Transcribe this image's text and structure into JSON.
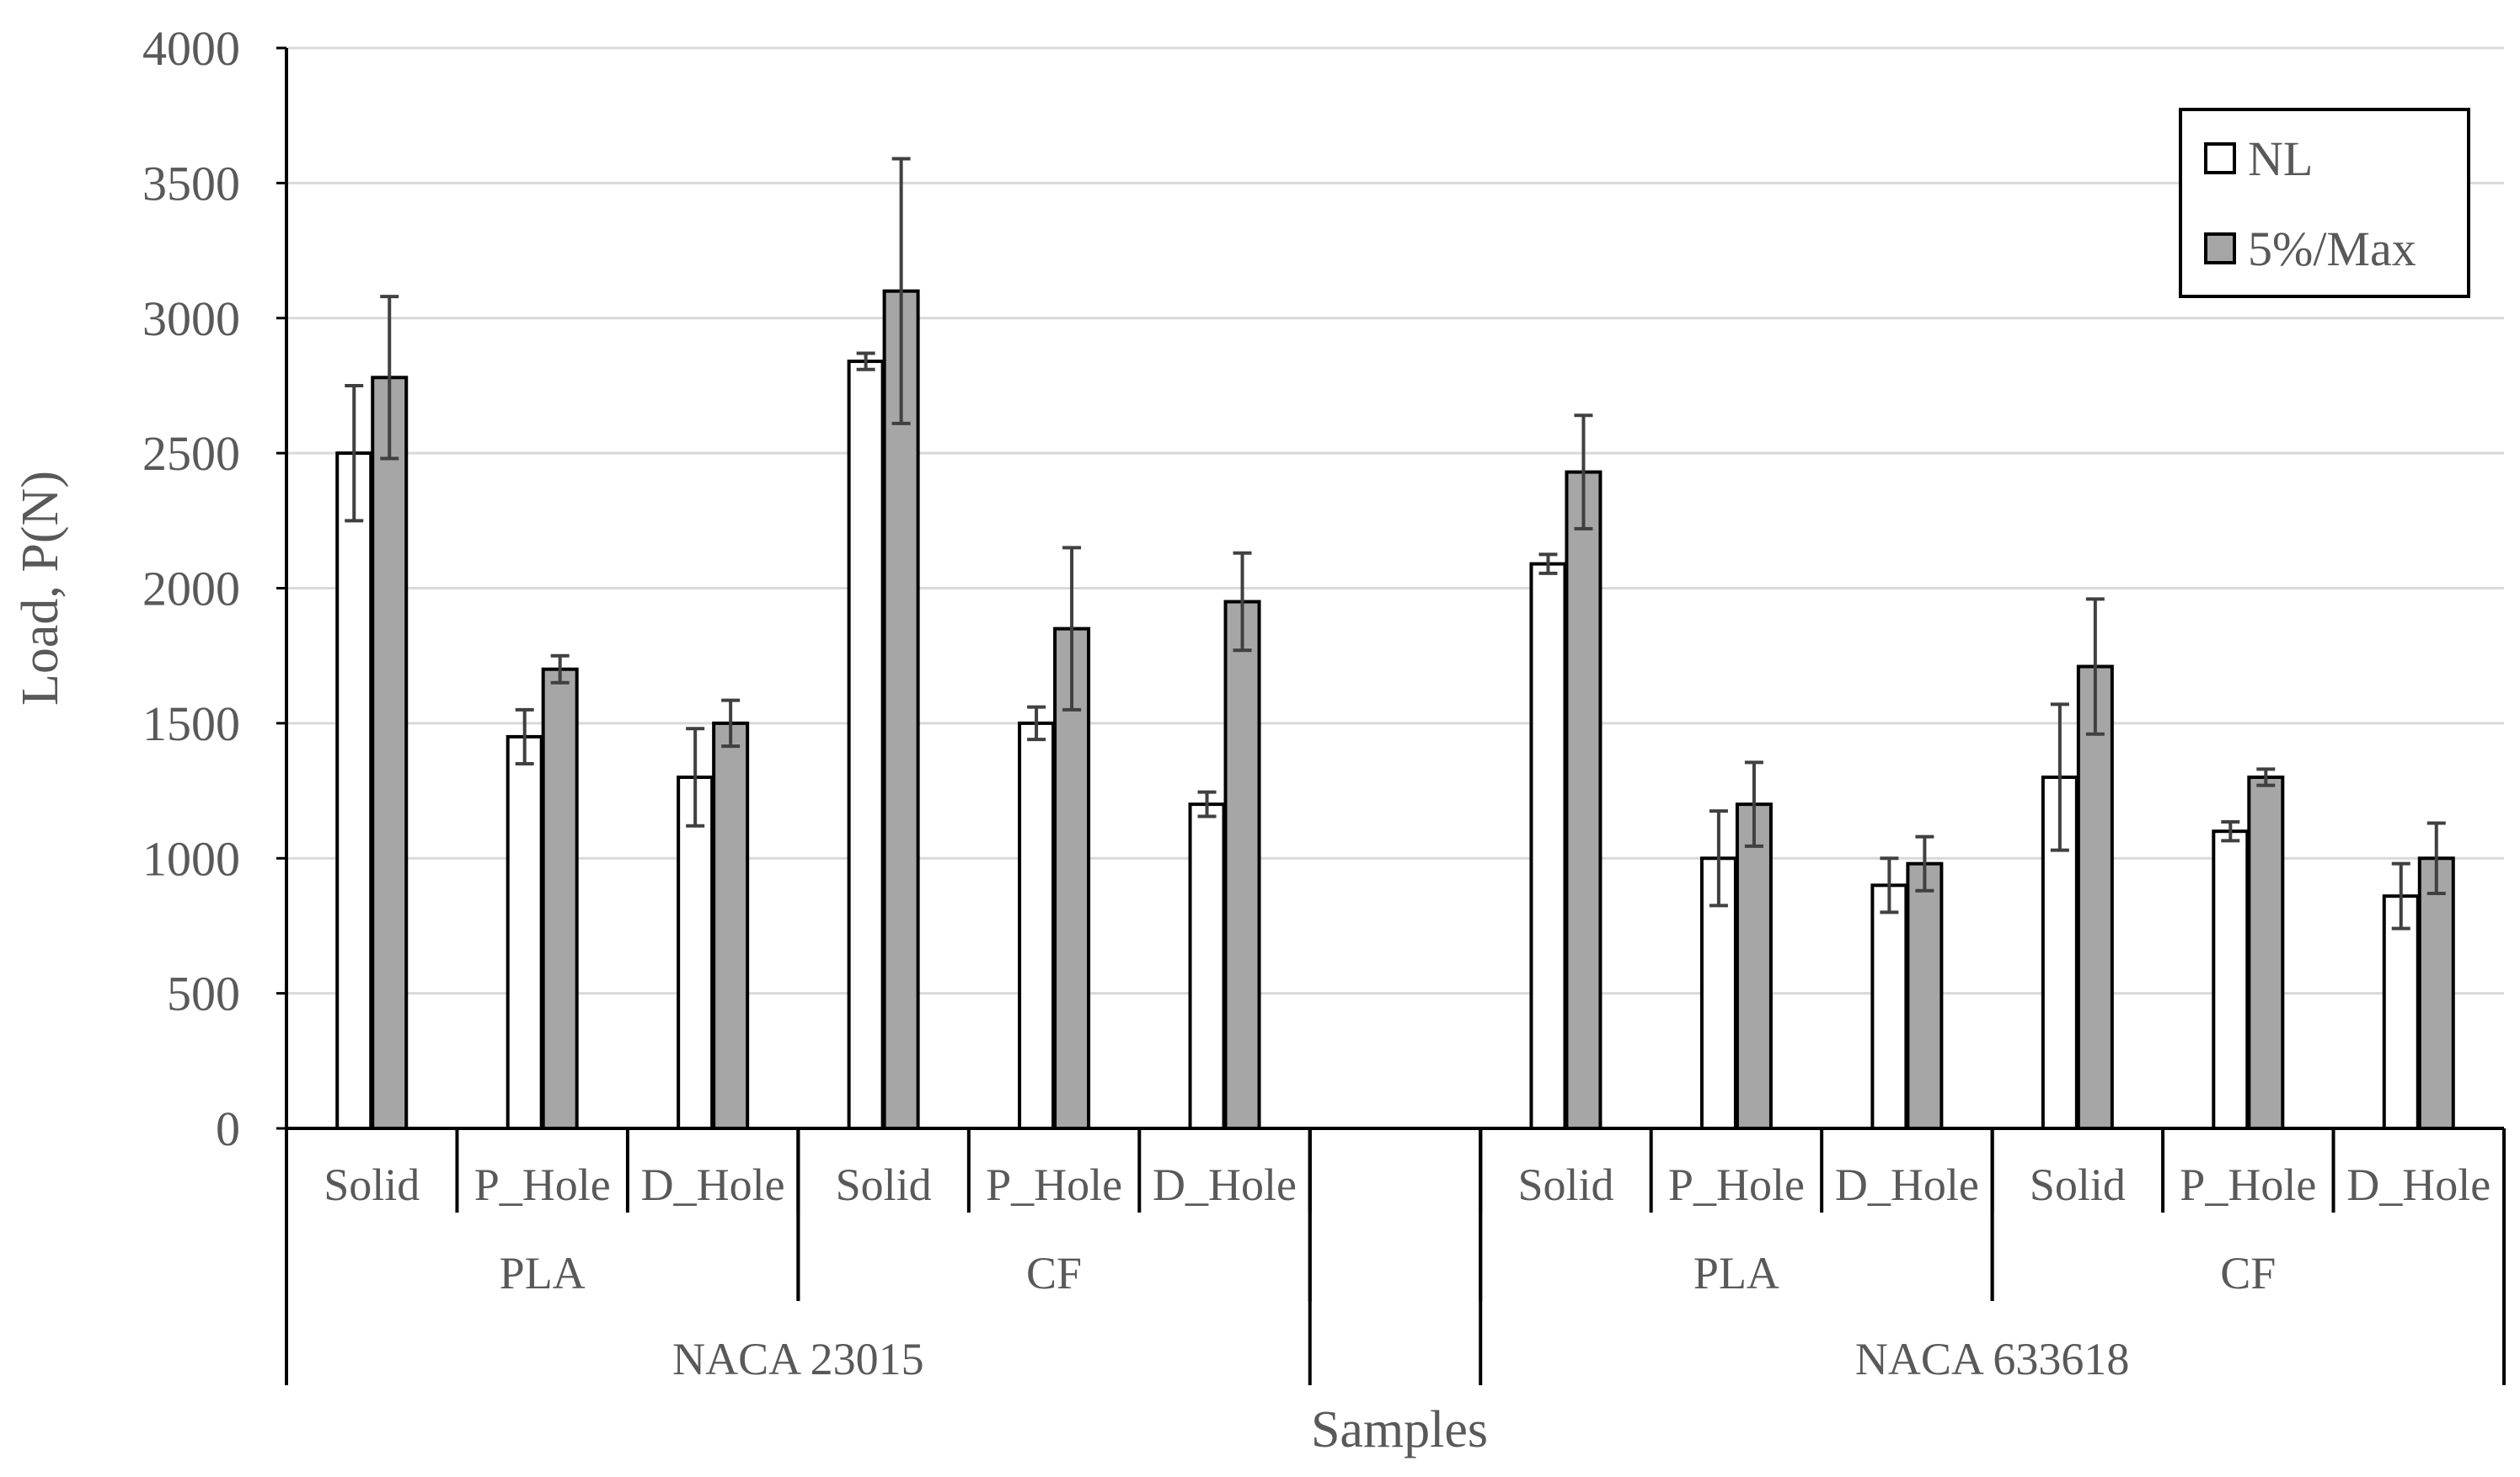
{
  "chart_data": {
    "type": "bar",
    "title": "",
    "ylabel": "Load, P(N)",
    "xlabel": "Samples",
    "ylim": [
      0,
      4000
    ],
    "yticks": [
      0,
      500,
      1000,
      1500,
      2000,
      2500,
      3000,
      3500,
      4000
    ],
    "grid": true,
    "legend_position": "top-right",
    "colors": {
      "NL": "#ffffff",
      "5%/Max": "#a6a6a6",
      "grid": "#d9d9d9",
      "axis": "#000000",
      "text": "#595959",
      "error": "#404040"
    },
    "categories": [
      {
        "profile": "NACA 23015",
        "material": "PLA",
        "sample": "Solid"
      },
      {
        "profile": "NACA 23015",
        "material": "PLA",
        "sample": "P_Hole"
      },
      {
        "profile": "NACA 23015",
        "material": "PLA",
        "sample": "D_Hole"
      },
      {
        "profile": "NACA 23015",
        "material": "CF",
        "sample": "Solid"
      },
      {
        "profile": "NACA 23015",
        "material": "CF",
        "sample": "P_Hole"
      },
      {
        "profile": "NACA 23015",
        "material": "CF",
        "sample": "D_Hole"
      },
      {
        "profile": "",
        "material": "",
        "sample": ""
      },
      {
        "profile": "NACA 633618",
        "material": "PLA",
        "sample": "Solid"
      },
      {
        "profile": "NACA 633618",
        "material": "PLA",
        "sample": "P_Hole"
      },
      {
        "profile": "NACA 633618",
        "material": "PLA",
        "sample": "D_Hole"
      },
      {
        "profile": "NACA 633618",
        "material": "CF",
        "sample": "Solid"
      },
      {
        "profile": "NACA 633618",
        "material": "CF",
        "sample": "P_Hole"
      },
      {
        "profile": "NACA 633618",
        "material": "CF",
        "sample": "D_Hole"
      }
    ],
    "series": [
      {
        "name": "NL",
        "values": [
          2500,
          1450,
          1300,
          2840,
          1500,
          1200,
          null,
          2090,
          1000,
          900,
          1300,
          1100,
          860
        ],
        "errors": [
          250,
          100,
          180,
          30,
          60,
          45,
          null,
          35,
          175,
          100,
          270,
          35,
          120
        ]
      },
      {
        "name": "5%/Max",
        "values": [
          2780,
          1700,
          1500,
          3100,
          1850,
          1950,
          null,
          2430,
          1200,
          980,
          1710,
          1300,
          1000
        ],
        "errors": [
          300,
          50,
          85,
          490,
          300,
          180,
          null,
          210,
          155,
          100,
          250,
          30,
          130
        ]
      }
    ]
  }
}
